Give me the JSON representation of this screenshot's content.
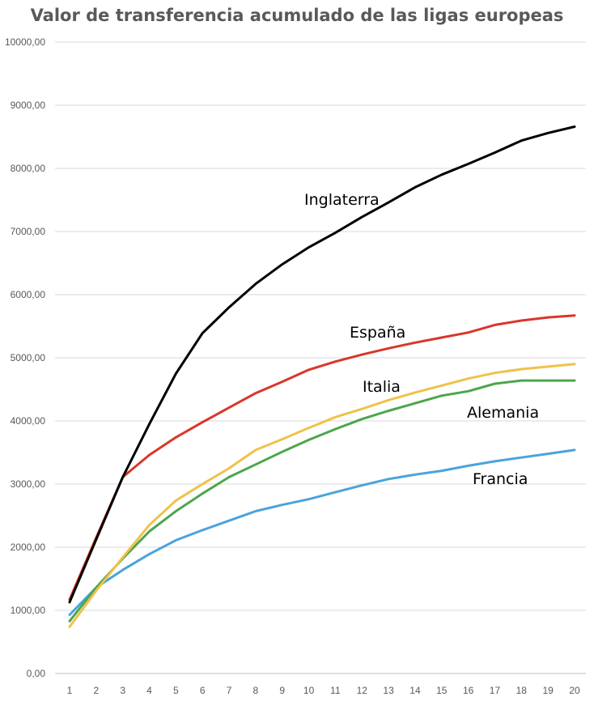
{
  "chart_data": {
    "type": "line",
    "title": "Valor de transferencia acumulado de las ligas europeas",
    "xlabel": "",
    "ylabel": "",
    "x": [
      1,
      2,
      3,
      4,
      5,
      6,
      7,
      8,
      9,
      10,
      11,
      12,
      13,
      14,
      15,
      16,
      17,
      18,
      19,
      20
    ],
    "x_tick_labels": [
      "1",
      "2",
      "3",
      "4",
      "5",
      "6",
      "7",
      "8",
      "9",
      "10",
      "11",
      "12",
      "13",
      "14",
      "15",
      "16",
      "17",
      "18",
      "19",
      "20"
    ],
    "ylim": [
      0,
      10000
    ],
    "y_ticks": [
      0,
      1000,
      2000,
      3000,
      4000,
      5000,
      6000,
      7000,
      8000,
      9000,
      10000
    ],
    "y_tick_labels": [
      "0,00",
      "1000,00",
      "2000,00",
      "3000,00",
      "4000,00",
      "5000,00",
      "6000,00",
      "7000,00",
      "8000,00",
      "9000,00",
      "10000,00"
    ],
    "grid": true,
    "legend": "none (series labeled directly on chart)",
    "series": [
      {
        "name": "Inglaterra",
        "color": "#000000",
        "values": [
          1130,
          2120,
          3110,
          3950,
          4750,
          5390,
          5800,
          6170,
          6480,
          6750,
          6980,
          7230,
          7460,
          7700,
          7900,
          8070,
          8250,
          8440,
          8560,
          8660
        ]
      },
      {
        "name": "España",
        "color": "#d9362b",
        "values": [
          1170,
          2150,
          3110,
          3460,
          3740,
          3980,
          4210,
          4440,
          4620,
          4810,
          4940,
          5050,
          5150,
          5240,
          5320,
          5400,
          5520,
          5590,
          5640,
          5670
        ]
      },
      {
        "name": "Italia",
        "color": "#f0c14b",
        "values": [
          740,
          1310,
          1840,
          2350,
          2740,
          3000,
          3250,
          3540,
          3710,
          3890,
          4060,
          4190,
          4330,
          4450,
          4560,
          4670,
          4760,
          4820,
          4860,
          4900
        ]
      },
      {
        "name": "Alemania",
        "color": "#4ca64c",
        "values": [
          830,
          1360,
          1820,
          2250,
          2570,
          2850,
          3110,
          3310,
          3510,
          3700,
          3870,
          4030,
          4160,
          4280,
          4400,
          4470,
          4590,
          4640,
          4640,
          4640
        ]
      },
      {
        "name": "Francia",
        "color": "#4aa3dc",
        "values": [
          930,
          1360,
          1640,
          1890,
          2110,
          2270,
          2420,
          2570,
          2670,
          2760,
          2870,
          2980,
          3080,
          3150,
          3210,
          3290,
          3360,
          3420,
          3480,
          3540
        ]
      }
    ]
  }
}
